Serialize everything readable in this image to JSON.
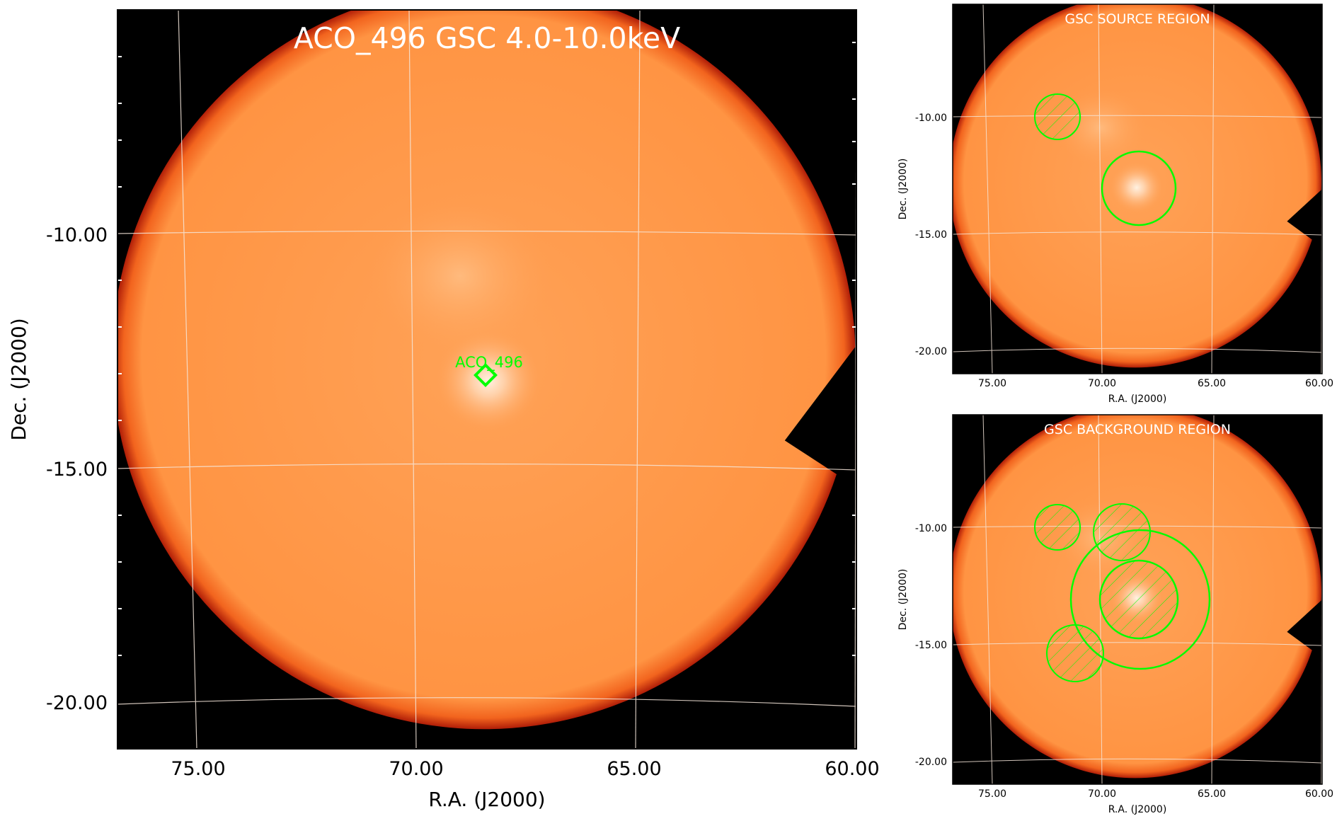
{
  "main_panel": {
    "title": "ACO_496 GSC 4.0-10.0keV",
    "xlabel": "R.A. (J2000)",
    "ylabel": "Dec. (J2000)",
    "xticks": [
      "75.00",
      "70.00",
      "65.00",
      "60.00"
    ],
    "yticks": [
      "-10.00",
      "-15.00",
      "-20.00"
    ],
    "marker_label": "ACO_496"
  },
  "source_panel": {
    "title": "GSC SOURCE REGION",
    "xlabel": "R.A. (J2000)",
    "ylabel": "Dec. (J2000)",
    "xticks": [
      "75.00",
      "70.00",
      "65.00",
      "60.00"
    ],
    "yticks": [
      "-10.00",
      "-15.00",
      "-20.00"
    ]
  },
  "background_panel": {
    "title": "GSC BACKGROUND REGION",
    "xlabel": "R.A. (J2000)",
    "ylabel": "Dec. (J2000)",
    "xticks": [
      "75.00",
      "70.00",
      "65.00",
      "60.00"
    ],
    "yticks": [
      "-10.00",
      "-15.00",
      "-20.00"
    ]
  },
  "colors": {
    "background": "#000000",
    "image": "#ff9a4a",
    "source_glow": "#fff0e0",
    "region": "#00ff00",
    "grid": "#f5e6da"
  }
}
